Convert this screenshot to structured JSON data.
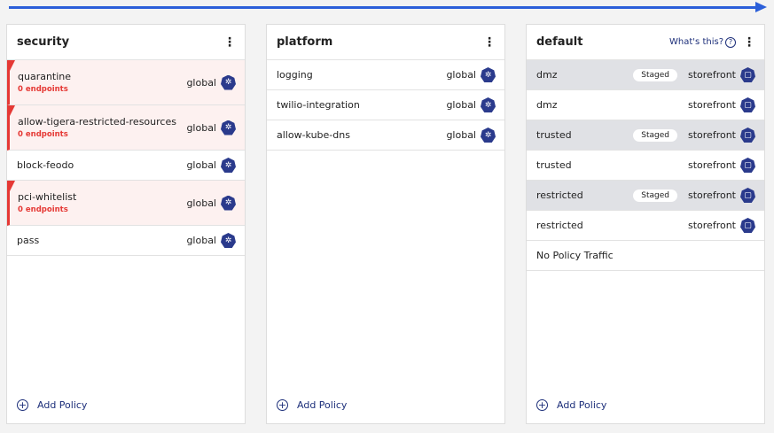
{
  "panels": [
    {
      "title": "security",
      "add": "Add Policy",
      "rows": [
        {
          "name": "quarantine",
          "scope": "global",
          "warning": "0 endpoints"
        },
        {
          "name": "allow-tigera-restricted-resources",
          "scope": "global",
          "warning": "0 endpoints"
        },
        {
          "name": "block-feodo",
          "scope": "global"
        },
        {
          "name": "pci-whitelist",
          "scope": "global",
          "warning": "0 endpoints"
        },
        {
          "name": "pass",
          "scope": "global"
        }
      ]
    },
    {
      "title": "platform",
      "add": "Add Policy",
      "rows": [
        {
          "name": "logging",
          "scope": "global"
        },
        {
          "name": "twilio-integration",
          "scope": "global"
        },
        {
          "name": "allow-kube-dns",
          "scope": "global"
        }
      ]
    },
    {
      "title": "default",
      "help": "What's this?",
      "add": "Add Policy",
      "rows": [
        {
          "name": "dmz",
          "scope": "storefront",
          "badge": "Staged"
        },
        {
          "name": "dmz",
          "scope": "storefront"
        },
        {
          "name": "trusted",
          "scope": "storefront",
          "badge": "Staged"
        },
        {
          "name": "trusted",
          "scope": "storefront"
        },
        {
          "name": "restricted",
          "scope": "storefront",
          "badge": "Staged"
        },
        {
          "name": "restricted",
          "scope": "storefront"
        },
        {
          "name": "No Policy Traffic"
        }
      ]
    }
  ],
  "colors": {
    "accent": "#2b5fd9",
    "warning": "#e53935",
    "staged_row": "#e0e1e5",
    "link": "#1d2f7a"
  }
}
